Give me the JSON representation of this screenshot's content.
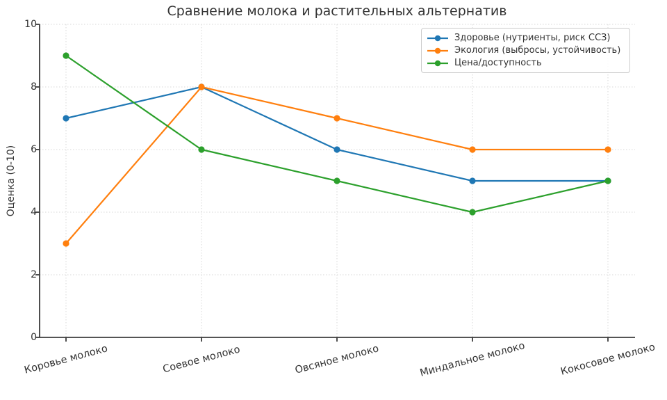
{
  "chart_data": {
    "type": "line",
    "title": "Сравнение молока и растительных альтернатив",
    "categories": [
      "Коровье молоко",
      "Соевое молоко",
      "Овсяное молоко",
      "Миндальное молоко",
      "Кокосовое молоко"
    ],
    "series": [
      {
        "key": "health",
        "name": "Здоровье (нутриенты, риск ССЗ)",
        "color": "#1f77b4",
        "values": [
          7,
          8,
          6,
          5,
          5
        ]
      },
      {
        "key": "ecology",
        "name": "Экология (выбросы, устойчивость)",
        "color": "#ff7f0e",
        "values": [
          3,
          8,
          7,
          6,
          6
        ]
      },
      {
        "key": "price",
        "name": "Цена/доступность",
        "color": "#2ca02c",
        "values": [
          9,
          6,
          5,
          4,
          5
        ]
      }
    ],
    "xlabel": "",
    "ylabel": "Оценка (0-10)",
    "ylim": [
      0,
      10
    ],
    "yticks": [
      0,
      2,
      4,
      6,
      8,
      10
    ],
    "grid": true,
    "grid_style": "dotted",
    "marker": "o",
    "legend_position": "upper right",
    "x_tick_rotation": 15,
    "colors": {
      "axis": "#3b3b3b",
      "grid": "#d7d7d7",
      "text": "#333333",
      "background": "#ffffff"
    }
  }
}
